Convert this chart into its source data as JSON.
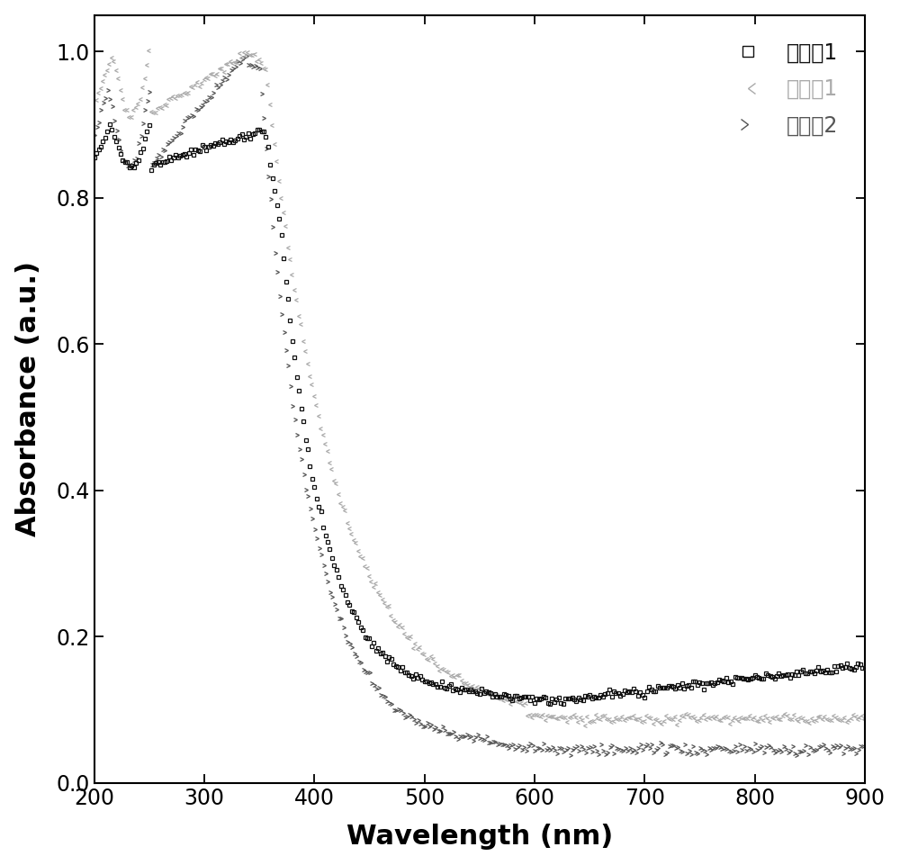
{
  "title": "",
  "xlabel": "Wavelength (nm)",
  "ylabel": "Absorbance (a.u.)",
  "xlim": [
    200,
    900
  ],
  "ylim": [
    0.0,
    1.05
  ],
  "yticks": [
    0.0,
    0.2,
    0.4,
    0.6,
    0.8,
    1.0
  ],
  "xticks": [
    200,
    300,
    400,
    500,
    600,
    700,
    800,
    900
  ],
  "series": [
    {
      "label": "对比例1",
      "color": "#111111",
      "marker": "s",
      "marker_size": 3.5,
      "zorder": 3
    },
    {
      "label": "实施例1",
      "color": "#aaaaaa",
      "marker": 4,
      "marker_size": 3.5,
      "zorder": 2
    },
    {
      "label": "对比例2",
      "color": "#555555",
      "marker": 5,
      "marker_size": 3.5,
      "zorder": 1
    }
  ],
  "figure_bg": "white",
  "axes_bg": "white"
}
